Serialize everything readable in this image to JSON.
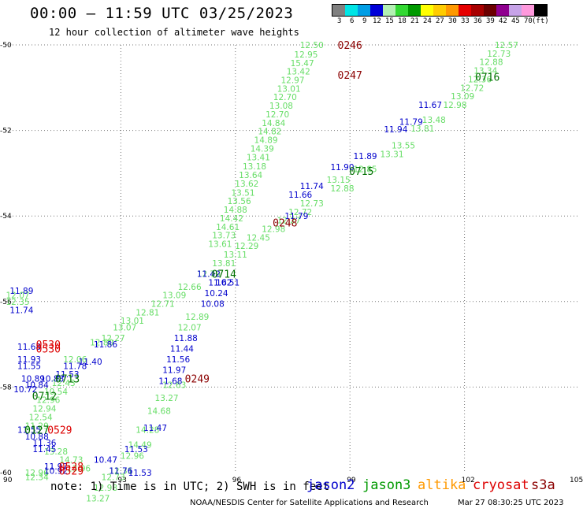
{
  "header": {
    "title": "00:00 – 11:59 UTC 03/25/2023",
    "subtitle": "12 hour collection of altimeter wave heights"
  },
  "legend": {
    "colors": [
      "#808080",
      "#00e5e5",
      "#009ee5",
      "#0000d8",
      "#b3f0b3",
      "#33d933",
      "#009a00",
      "#ffff00",
      "#ffcc00",
      "#ff9900",
      "#e60000",
      "#a80000",
      "#6b0000",
      "#8f008f",
      "#c7a3e8",
      "#ff99dd",
      "#000000"
    ],
    "labels": [
      "3",
      "6",
      "9",
      "12",
      "15",
      "18",
      "21",
      "24",
      "27",
      "30",
      "33",
      "36",
      "39",
      "42",
      "45",
      "70",
      "(ft)"
    ]
  },
  "chart_data": {
    "type": "scatter",
    "xlim": [
      90,
      105
    ],
    "ylim": [
      -60,
      -50
    ],
    "x_ticks": [
      "90",
      "93",
      "96",
      "99",
      "102",
      "105"
    ],
    "y_ticks": [
      "-50",
      "-52",
      "-54",
      "-56",
      "-58",
      "-60"
    ],
    "grid": true,
    "pass_labels": [
      {
        "text": "0246",
        "x": 99.0,
        "y": -50.0,
        "color": "#8b0000"
      },
      {
        "text": "0247",
        "x": 99.0,
        "y": -50.7,
        "color": "#8b0000"
      },
      {
        "text": "0248",
        "x": 97.3,
        "y": -54.15,
        "color": "#8b0000"
      },
      {
        "text": "0249",
        "x": 95.0,
        "y": -57.8,
        "color": "#8b0000"
      },
      {
        "text": "0716",
        "x": 102.6,
        "y": -50.75,
        "color": "#007000"
      },
      {
        "text": "0715",
        "x": 99.3,
        "y": -52.95,
        "color": "#007000"
      },
      {
        "text": "0714",
        "x": 95.7,
        "y": -55.35,
        "color": "#007000"
      },
      {
        "text": "0713",
        "x": 91.6,
        "y": -57.8,
        "color": "#007000"
      },
      {
        "text": "0712",
        "x": 91.0,
        "y": -58.2,
        "color": "#007000"
      },
      {
        "text": "0127",
        "x": 90.8,
        "y": -59.0,
        "color": "#007000"
      },
      {
        "text": "0530",
        "x": 91.1,
        "y": -57.0,
        "color": "#dd0000"
      },
      {
        "text": "0530",
        "x": 91.1,
        "y": -57.1,
        "color": "#dd0000"
      },
      {
        "text": "0529",
        "x": 91.4,
        "y": -59.0,
        "color": "#dd0000"
      },
      {
        "text": "0528",
        "x": 91.7,
        "y": -59.85,
        "color": "#dd0000"
      },
      {
        "text": "0529",
        "x": 91.7,
        "y": -59.95,
        "color": "#dd0000"
      }
    ],
    "series": [
      {
        "name": "jason3",
        "color": "#66dd66",
        "points": [
          {
            "x": 98.0,
            "y": -50.0,
            "v": "12.50"
          },
          {
            "x": 97.85,
            "y": -50.22,
            "v": "12.95"
          },
          {
            "x": 97.75,
            "y": -50.42,
            "v": "15.47"
          },
          {
            "x": 97.65,
            "y": -50.62,
            "v": "13.42"
          },
          {
            "x": 97.5,
            "y": -50.82,
            "v": "12.97"
          },
          {
            "x": 97.4,
            "y": -51.02,
            "v": "13.01"
          },
          {
            "x": 97.3,
            "y": -51.22,
            "v": "12.70"
          },
          {
            "x": 97.2,
            "y": -51.42,
            "v": "13.08"
          },
          {
            "x": 97.1,
            "y": -51.62,
            "v": "12.70"
          },
          {
            "x": 97.0,
            "y": -51.82,
            "v": "14.84"
          },
          {
            "x": 96.9,
            "y": -52.02,
            "v": "14.82"
          },
          {
            "x": 96.8,
            "y": -52.22,
            "v": "14.89"
          },
          {
            "x": 96.7,
            "y": -52.42,
            "v": "14.39"
          },
          {
            "x": 96.6,
            "y": -52.62,
            "v": "13.41"
          },
          {
            "x": 96.5,
            "y": -52.84,
            "v": "13.18"
          },
          {
            "x": 96.4,
            "y": -53.04,
            "v": "13.64"
          },
          {
            "x": 96.3,
            "y": -53.24,
            "v": "13.62"
          },
          {
            "x": 96.2,
            "y": -53.45,
            "v": "13.51"
          },
          {
            "x": 96.1,
            "y": -53.65,
            "v": "13.56"
          },
          {
            "x": 96.0,
            "y": -53.85,
            "v": "14.88"
          },
          {
            "x": 95.9,
            "y": -54.05,
            "v": "14.42"
          },
          {
            "x": 95.8,
            "y": -54.25,
            "v": "14.61"
          },
          {
            "x": 95.7,
            "y": -54.45,
            "v": "13.73"
          },
          {
            "x": 95.6,
            "y": -54.65,
            "v": "13.61"
          },
          {
            "x": 91.5,
            "y": -57.9,
            "v": "12.43"
          },
          {
            "x": 91.3,
            "y": -58.1,
            "v": "10.54"
          },
          {
            "x": 91.1,
            "y": -58.3,
            "v": "12.96"
          },
          {
            "x": 91.0,
            "y": -58.5,
            "v": "12.94"
          },
          {
            "x": 90.9,
            "y": -58.7,
            "v": "12.54"
          },
          {
            "x": 90.8,
            "y": -58.9,
            "v": "11.29"
          }
        ]
      },
      {
        "name": "jason3",
        "color": "#66dd66",
        "points": [
          {
            "x": 103.1,
            "y": -50.0,
            "v": "12.57"
          },
          {
            "x": 102.9,
            "y": -50.2,
            "v": "12.73"
          },
          {
            "x": 102.7,
            "y": -50.4,
            "v": "12.88"
          },
          {
            "x": 102.55,
            "y": -50.6,
            "v": "13.34"
          },
          {
            "x": 102.4,
            "y": -50.8,
            "v": "12.36"
          },
          {
            "x": 102.2,
            "y": -51.0,
            "v": "12.72"
          },
          {
            "x": 101.95,
            "y": -51.2,
            "v": "13.09"
          },
          {
            "x": 101.75,
            "y": -51.4,
            "v": "12.98"
          },
          {
            "x": 101.2,
            "y": -51.75,
            "v": "13.48"
          },
          {
            "x": 100.9,
            "y": -51.95,
            "v": "13.81"
          },
          {
            "x": 100.4,
            "y": -52.35,
            "v": "13.55"
          },
          {
            "x": 100.1,
            "y": -52.55,
            "v": "13.31"
          },
          {
            "x": 99.4,
            "y": -52.9,
            "v": "12.85"
          },
          {
            "x": 98.8,
            "y": -53.35,
            "v": "12.88"
          },
          {
            "x": 98.7,
            "y": -53.15,
            "v": "13.15"
          },
          {
            "x": 98.0,
            "y": -53.7,
            "v": "12.73"
          },
          {
            "x": 97.7,
            "y": -53.9,
            "v": "12.72"
          },
          {
            "x": 97.4,
            "y": -54.1,
            "v": "12.27"
          },
          {
            "x": 97.0,
            "y": -54.3,
            "v": "12.98"
          },
          {
            "x": 96.6,
            "y": -54.5,
            "v": "12.45"
          },
          {
            "x": 96.3,
            "y": -54.7,
            "v": "12.29"
          },
          {
            "x": 96.0,
            "y": -54.9,
            "v": "13.11"
          },
          {
            "x": 95.7,
            "y": -55.1,
            "v": "13.81"
          },
          {
            "x": 95.3,
            "y": -55.35,
            "v": "12.79"
          },
          {
            "x": 94.8,
            "y": -55.65,
            "v": "12.66"
          },
          {
            "x": 94.4,
            "y": -55.85,
            "v": "13.09"
          },
          {
            "x": 94.1,
            "y": -56.05,
            "v": "12.71"
          },
          {
            "x": 93.7,
            "y": -56.25,
            "v": "12.81"
          },
          {
            "x": 93.3,
            "y": -56.45,
            "v": "13.01"
          },
          {
            "x": 93.1,
            "y": -56.6,
            "v": "13.07"
          },
          {
            "x": 92.8,
            "y": -56.85,
            "v": "12.27"
          },
          {
            "x": 92.5,
            "y": -56.95,
            "v": "12.80"
          },
          {
            "x": 91.8,
            "y": -57.35,
            "v": "12.06"
          },
          {
            "x": 95.0,
            "y": -56.35,
            "v": "12.89"
          },
          {
            "x": 94.8,
            "y": -56.6,
            "v": "12.07"
          },
          {
            "x": 94.4,
            "y": -57.95,
            "v": "12.63"
          },
          {
            "x": 94.2,
            "y": -58.25,
            "v": "13.27"
          },
          {
            "x": 94.0,
            "y": -58.55,
            "v": "14.68"
          },
          {
            "x": 93.7,
            "y": -59.0,
            "v": "14.28"
          },
          {
            "x": 93.5,
            "y": -59.35,
            "v": "14.49"
          },
          {
            "x": 93.3,
            "y": -59.6,
            "v": "12.96"
          },
          {
            "x": 93.0,
            "y": -59.95,
            "v": "12.31"
          },
          {
            "x": 92.8,
            "y": -60.1,
            "v": "12.73"
          },
          {
            "x": 92.6,
            "y": -60.35,
            "v": "12.98"
          },
          {
            "x": 92.4,
            "y": -60.6,
            "v": "13.27"
          },
          {
            "x": 91.3,
            "y": -59.5,
            "v": "13.28"
          },
          {
            "x": 91.7,
            "y": -59.7,
            "v": "14.73"
          },
          {
            "x": 91.9,
            "y": -59.9,
            "v": "13.96"
          },
          {
            "x": 90.8,
            "y": -60.0,
            "v": "12.96"
          },
          {
            "x": 90.8,
            "y": -60.1,
            "v": "12.34"
          },
          {
            "x": 90.3,
            "y": -55.85,
            "v": "12.07"
          },
          {
            "x": 90.3,
            "y": -56.0,
            "v": "12.35"
          }
        ]
      },
      {
        "name": "jason2",
        "color": "#0000cc",
        "points": [
          {
            "x": 101.1,
            "y": -51.4,
            "v": "11.67"
          },
          {
            "x": 100.6,
            "y": -51.8,
            "v": "11.79"
          },
          {
            "x": 100.2,
            "y": -51.97,
            "v": "11.94"
          },
          {
            "x": 99.4,
            "y": -52.6,
            "v": "11.89"
          },
          {
            "x": 98.8,
            "y": -52.85,
            "v": "11.90"
          },
          {
            "x": 98.0,
            "y": -53.3,
            "v": "11.74"
          },
          {
            "x": 97.7,
            "y": -53.5,
            "v": "11.66"
          },
          {
            "x": 97.6,
            "y": -54.0,
            "v": "11.79"
          },
          {
            "x": 95.3,
            "y": -55.35,
            "v": "11.42"
          },
          {
            "x": 95.6,
            "y": -55.55,
            "v": "11.62"
          },
          {
            "x": 95.8,
            "y": -55.55,
            "v": "10.51"
          },
          {
            "x": 95.5,
            "y": -55.8,
            "v": "10.24"
          },
          {
            "x": 95.4,
            "y": -56.05,
            "v": "10.08"
          },
          {
            "x": 92.6,
            "y": -57.0,
            "v": "11.86"
          },
          {
            "x": 92.2,
            "y": -57.4,
            "v": "11.40"
          },
          {
            "x": 91.8,
            "y": -57.5,
            "v": "11.78"
          },
          {
            "x": 91.6,
            "y": -57.7,
            "v": "11.53"
          },
          {
            "x": 91.2,
            "y": -57.8,
            "v": "10.88"
          },
          {
            "x": 90.7,
            "y": -57.8,
            "v": "10.89"
          },
          {
            "x": 90.8,
            "y": -57.95,
            "v": "10.84"
          },
          {
            "x": 90.5,
            "y": -58.05,
            "v": "10.72"
          },
          {
            "x": 90.6,
            "y": -57.05,
            "v": "11.68"
          },
          {
            "x": 90.6,
            "y": -57.35,
            "v": "11.93"
          },
          {
            "x": 90.6,
            "y": -57.5,
            "v": "11.55"
          },
          {
            "x": 90.4,
            "y": -55.75,
            "v": "11.89"
          },
          {
            "x": 90.4,
            "y": -56.2,
            "v": "11.74"
          },
          {
            "x": 94.7,
            "y": -56.85,
            "v": "11.88"
          },
          {
            "x": 94.6,
            "y": -57.1,
            "v": "11.44"
          },
          {
            "x": 94.5,
            "y": -57.35,
            "v": "11.56"
          },
          {
            "x": 94.4,
            "y": -57.6,
            "v": "11.97"
          },
          {
            "x": 94.3,
            "y": -57.85,
            "v": "11.68"
          },
          {
            "x": 93.9,
            "y": -58.95,
            "v": "11.47"
          },
          {
            "x": 93.4,
            "y": -59.45,
            "v": "11.53"
          },
          {
            "x": 92.6,
            "y": -59.7,
            "v": "10.47"
          },
          {
            "x": 93.0,
            "y": -59.95,
            "v": "11.76"
          },
          {
            "x": 93.5,
            "y": -60.0,
            "v": "11.53"
          },
          {
            "x": 90.6,
            "y": -59.0,
            "v": "11.55"
          },
          {
            "x": 90.8,
            "y": -59.15,
            "v": "10.88"
          },
          {
            "x": 91.0,
            "y": -59.3,
            "v": "11.36"
          },
          {
            "x": 91.0,
            "y": -59.45,
            "v": "11.45"
          },
          {
            "x": 91.3,
            "y": -59.85,
            "v": "11.97"
          },
          {
            "x": 91.3,
            "y": -59.95,
            "v": "10.92"
          }
        ]
      }
    ]
  },
  "footer": {
    "note": "note: 1) Time is in UTC; 2) SWH is in feet",
    "satellites": [
      {
        "name": "jason2",
        "color": "#0000cc"
      },
      {
        "name": "jason3",
        "color": "#009900"
      },
      {
        "name": "altika",
        "color": "#ff9900"
      },
      {
        "name": "cryosat",
        "color": "#dd0000"
      },
      {
        "name": "s3a",
        "color": "#8b0000"
      }
    ],
    "credit": "NOAA/NESDIS Center for Satellite Applications and Research",
    "timestamp": "Mar 27 08:30:25 UTC 2023"
  }
}
